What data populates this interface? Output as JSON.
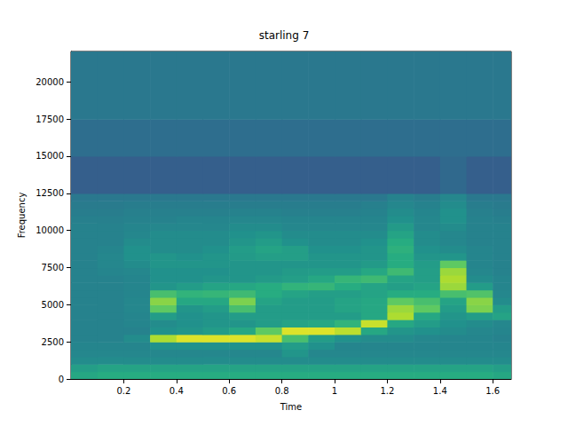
{
  "chart_data": {
    "type": "spectrogram",
    "title": "starling 7",
    "x_label": "Time",
    "y_label": "Frequency",
    "xlim": [
      0,
      1.67
    ],
    "xticks": [
      0.2,
      0.4,
      0.6,
      0.8,
      1.0,
      1.2,
      1.4,
      1.6
    ],
    "ylim": [
      0,
      22050
    ],
    "yticks": [
      0,
      2500,
      5000,
      7500,
      10000,
      12500,
      15000,
      17500,
      20000
    ],
    "grid": false,
    "zlim": [
      0,
      100
    ],
    "time_edges": [
      0,
      0.1,
      0.2,
      0.3,
      0.4,
      0.5,
      0.6,
      0.7,
      0.8,
      0.9,
      1.0,
      1.1,
      1.2,
      1.3,
      1.4,
      1.5,
      1.6,
      1.67
    ],
    "freq_edges": [
      0,
      500,
      1000,
      1500,
      2000,
      2500,
      3000,
      3500,
      4000,
      4500,
      5000,
      5500,
      6000,
      6500,
      7000,
      7500,
      8000,
      8500,
      9000,
      9500,
      10000,
      10500,
      11000,
      11500,
      12000,
      12500,
      15000,
      17500,
      22050
    ],
    "cells": [
      [
        60,
        62,
        62,
        62,
        62,
        62,
        62,
        62,
        62,
        62,
        62,
        62,
        62,
        62,
        62,
        62,
        60
      ],
      [
        56,
        58,
        58,
        58,
        58,
        58,
        58,
        58,
        58,
        58,
        58,
        58,
        58,
        58,
        58,
        58,
        56
      ],
      [
        48,
        48,
        48,
        48,
        48,
        48,
        48,
        48,
        48,
        48,
        48,
        48,
        48,
        48,
        48,
        48,
        48
      ],
      [
        46,
        46,
        46,
        46,
        46,
        46,
        46,
        46,
        52,
        46,
        46,
        46,
        46,
        46,
        46,
        46,
        46
      ],
      [
        45,
        45,
        45,
        50,
        50,
        50,
        50,
        50,
        55,
        50,
        45,
        45,
        45,
        45,
        45,
        45,
        45
      ],
      [
        44,
        44,
        48,
        88,
        95,
        95,
        95,
        92,
        70,
        55,
        50,
        48,
        48,
        46,
        45,
        45,
        44
      ],
      [
        44,
        44,
        44,
        50,
        52,
        55,
        60,
        75,
        95,
        95,
        90,
        60,
        52,
        50,
        48,
        46,
        45
      ],
      [
        44,
        44,
        45,
        48,
        50,
        52,
        52,
        55,
        58,
        60,
        65,
        92,
        60,
        55,
        50,
        48,
        46
      ],
      [
        44,
        44,
        45,
        55,
        50,
        52,
        55,
        55,
        55,
        55,
        55,
        60,
        88,
        60,
        52,
        55,
        58
      ],
      [
        44,
        44,
        46,
        75,
        52,
        55,
        70,
        55,
        55,
        55,
        58,
        60,
        85,
        75,
        55,
        80,
        55
      ],
      [
        44,
        44,
        46,
        82,
        60,
        60,
        80,
        58,
        55,
        55,
        58,
        60,
        75,
        70,
        58,
        82,
        48
      ],
      [
        44,
        44,
        45,
        70,
        65,
        66,
        68,
        62,
        58,
        56,
        56,
        58,
        62,
        62,
        70,
        72,
        46
      ],
      [
        44,
        44,
        45,
        52,
        55,
        58,
        60,
        62,
        65,
        66,
        62,
        58,
        56,
        58,
        85,
        55,
        45
      ],
      [
        44,
        44,
        45,
        50,
        50,
        52,
        52,
        54,
        56,
        60,
        66,
        68,
        58,
        56,
        88,
        48,
        45
      ],
      [
        44,
        45,
        46,
        50,
        50,
        50,
        52,
        52,
        54,
        55,
        55,
        60,
        68,
        56,
        85,
        46,
        44
      ],
      [
        44,
        46,
        48,
        52,
        52,
        52,
        52,
        52,
        52,
        52,
        52,
        54,
        62,
        55,
        75,
        45,
        44
      ],
      [
        44,
        46,
        50,
        52,
        50,
        52,
        54,
        56,
        56,
        52,
        52,
        52,
        62,
        52,
        52,
        45,
        44
      ],
      [
        44,
        45,
        50,
        48,
        48,
        50,
        55,
        58,
        56,
        50,
        50,
        52,
        64,
        50,
        48,
        45,
        44
      ],
      [
        44,
        44,
        48,
        48,
        48,
        48,
        52,
        55,
        50,
        48,
        48,
        50,
        62,
        48,
        46,
        44,
        44
      ],
      [
        44,
        44,
        46,
        48,
        48,
        48,
        50,
        52,
        48,
        48,
        48,
        48,
        58,
        48,
        46,
        44,
        44
      ],
      [
        44,
        44,
        45,
        46,
        46,
        46,
        48,
        48,
        46,
        46,
        46,
        46,
        54,
        46,
        48,
        44,
        44
      ],
      [
        43,
        43,
        44,
        44,
        45,
        45,
        46,
        46,
        45,
        45,
        45,
        45,
        50,
        46,
        50,
        44,
        43
      ],
      [
        42,
        42,
        43,
        43,
        43,
        43,
        44,
        44,
        43,
        43,
        43,
        44,
        48,
        45,
        50,
        43,
        42
      ],
      [
        41,
        41,
        42,
        42,
        42,
        42,
        42,
        42,
        42,
        42,
        42,
        43,
        46,
        44,
        48,
        42,
        41
      ],
      [
        40,
        40,
        40,
        40,
        40,
        40,
        40,
        40,
        40,
        40,
        40,
        40,
        44,
        42,
        46,
        40,
        40
      ],
      [
        30,
        30,
        30,
        30,
        30,
        30,
        30,
        30,
        30,
        30,
        30,
        30,
        30,
        30,
        34,
        30,
        30
      ],
      [
        36,
        36,
        36,
        36,
        36,
        36,
        36,
        36,
        36,
        36,
        36,
        36,
        36,
        36,
        36,
        36,
        36
      ],
      [
        40,
        40,
        40,
        40,
        40,
        40,
        40,
        40,
        40,
        40,
        40,
        40,
        40,
        40,
        40,
        40,
        40
      ]
    ]
  }
}
